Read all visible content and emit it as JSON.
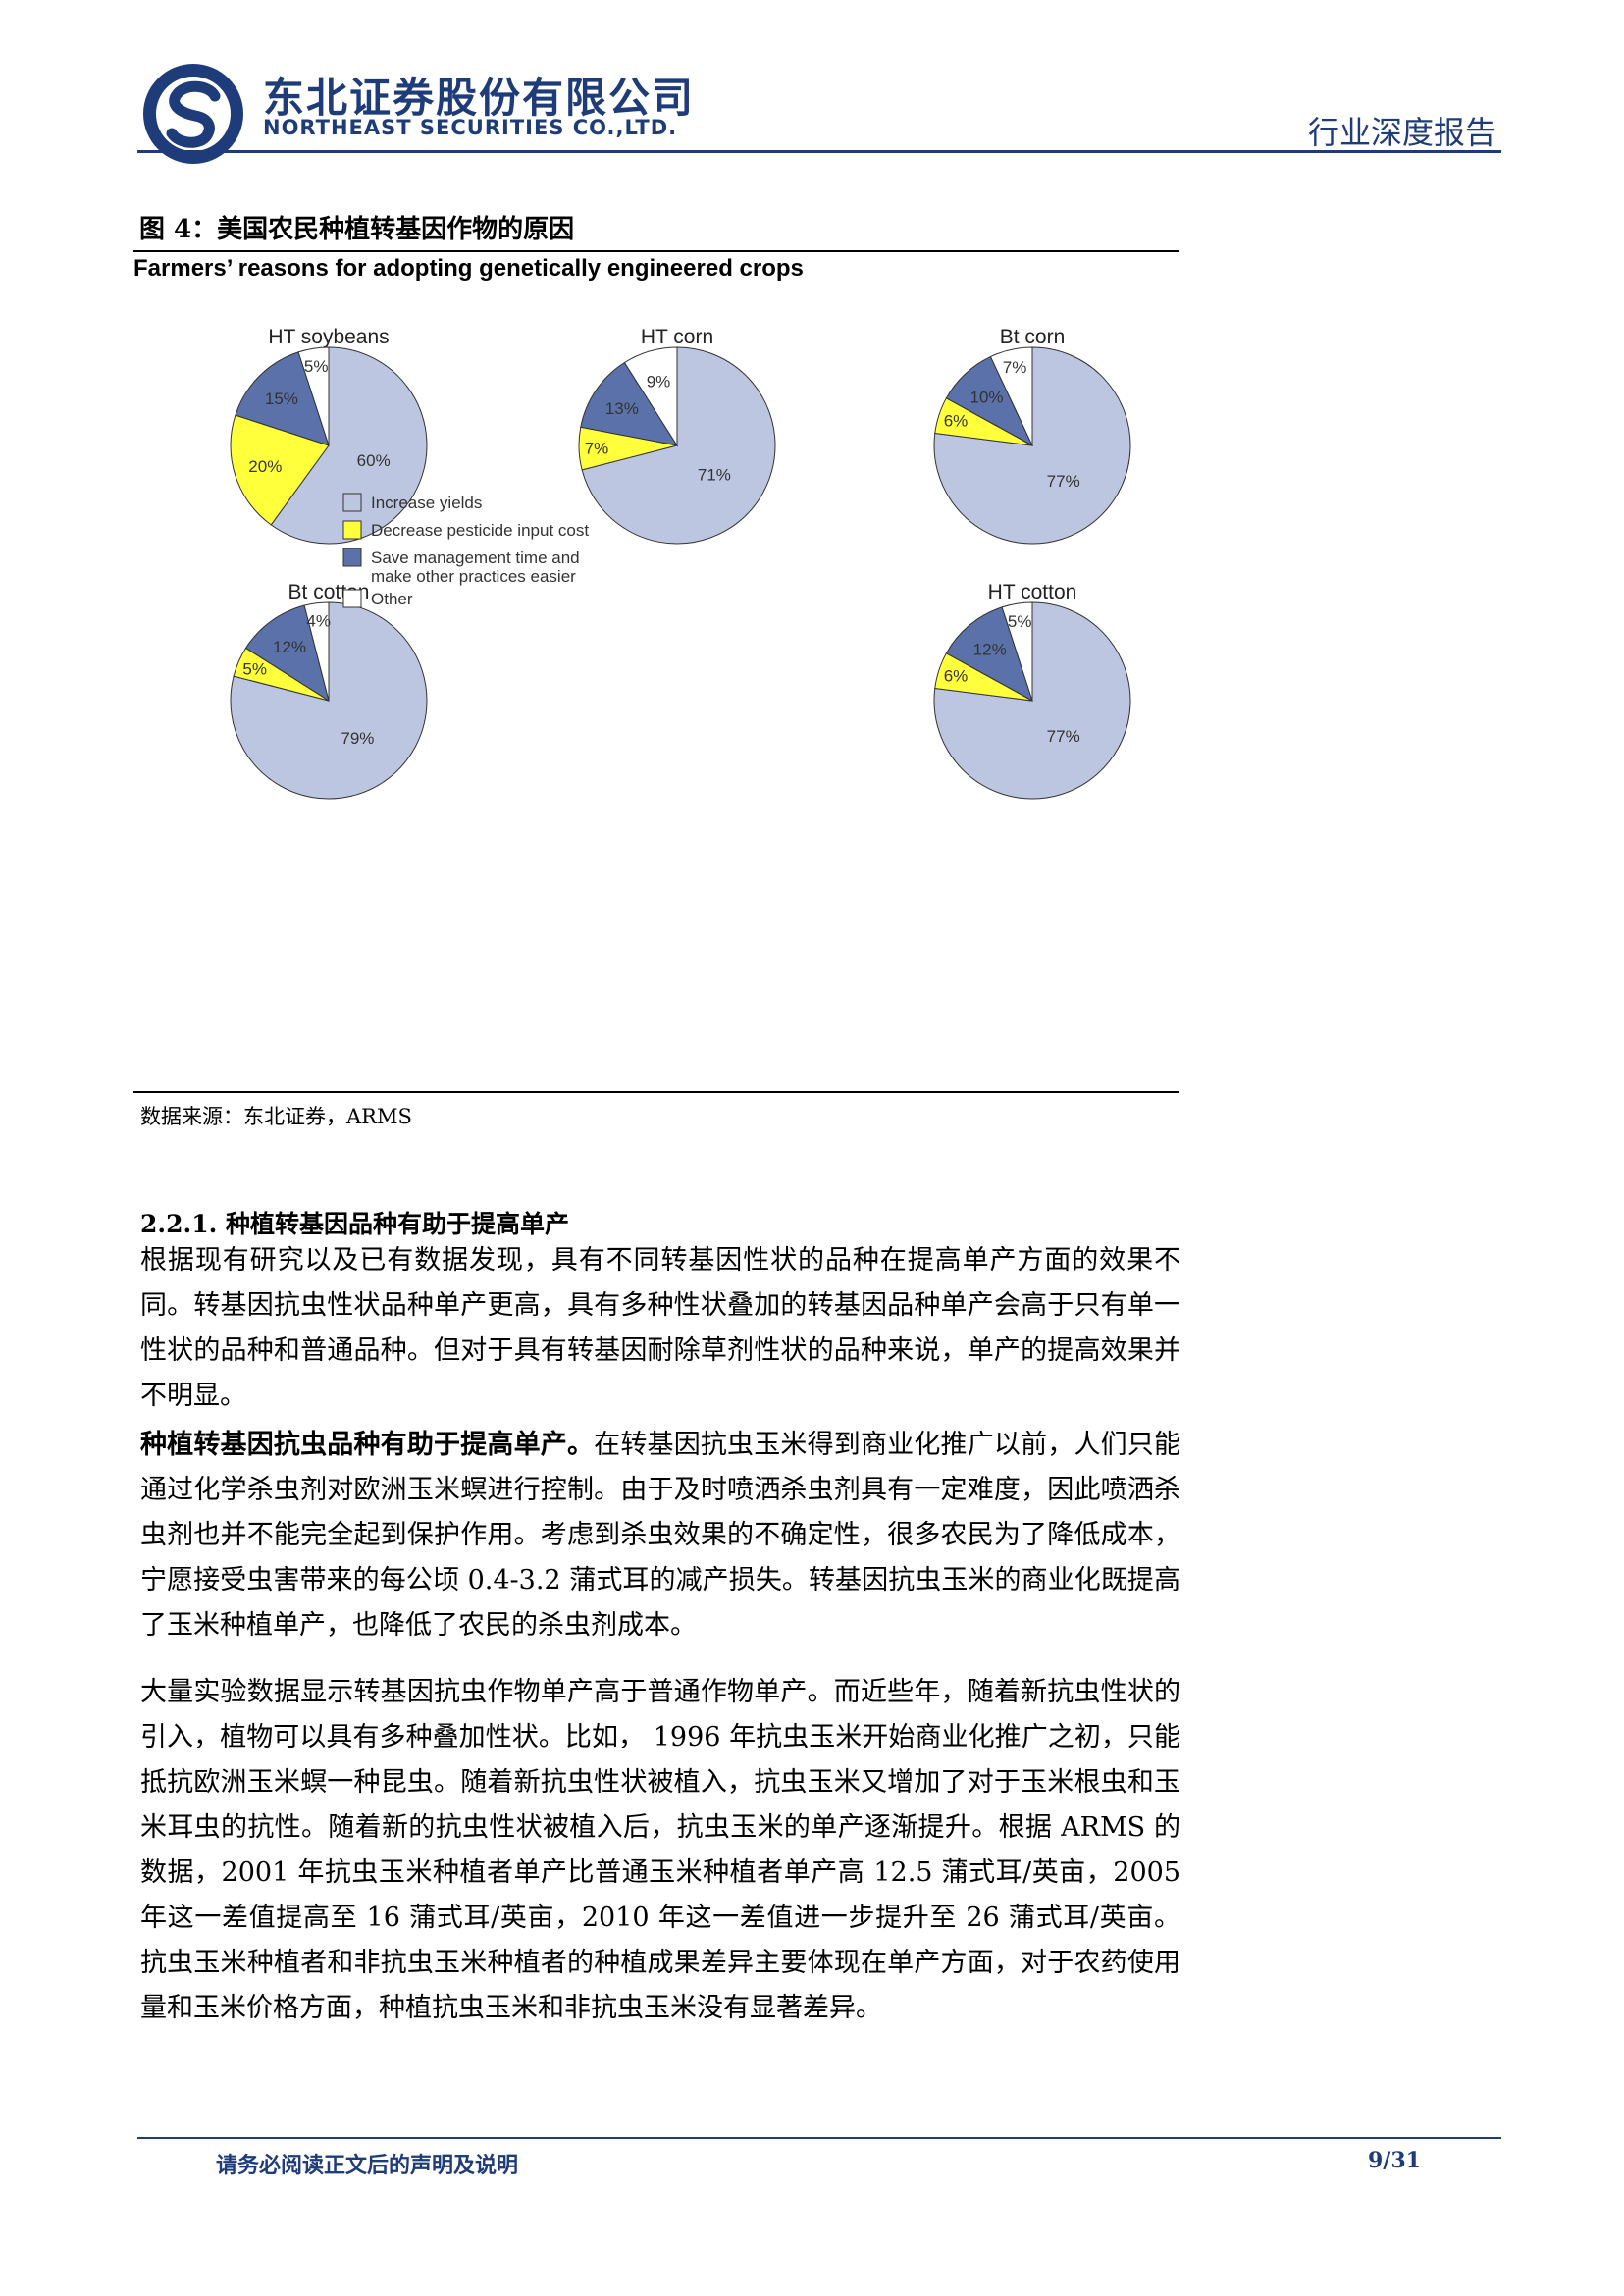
{
  "header": {
    "company_cn": "东北证券股份有限公司",
    "company_en": "NORTHEAST SECURITIES CO.,LTD.",
    "report_type": "行业深度报告"
  },
  "figure": {
    "caption": "图 4：美国农民种植转基因作物的原因",
    "source": "数据来源：东北证券，ARMS"
  },
  "colors": {
    "increase_yields": "#bcc6e0",
    "decrease_pesticide": "#ffff3b",
    "save_management": "#5a71a9",
    "other": "#ffffff",
    "brand": "#1f3c7a"
  },
  "chart_data": {
    "type": "pie",
    "title": "Farmers’ reasons for adopting genetically engineered crops",
    "legend": [
      "Increase yields",
      "Decrease pesticide input cost",
      "Save management time and make other practices easier",
      "Other"
    ],
    "legend_position": "center",
    "charts": [
      {
        "name": "HT soybeans",
        "values": [
          60,
          20,
          15,
          5
        ],
        "labels": [
          "60%",
          "20%",
          "15%",
          "5%"
        ]
      },
      {
        "name": "HT corn",
        "values": [
          71,
          7,
          13,
          9
        ],
        "labels": [
          "71%",
          "7%",
          "13%",
          "9%"
        ]
      },
      {
        "name": "Bt corn",
        "values": [
          77,
          6,
          10,
          7
        ],
        "labels": [
          "77%",
          "6%",
          "10%",
          "7%"
        ]
      },
      {
        "name": "Bt cotton",
        "values": [
          79,
          5,
          12,
          4
        ],
        "labels": [
          "79%",
          "5%",
          "12%",
          "4%"
        ]
      },
      {
        "name": "HT cotton",
        "values": [
          77,
          6,
          12,
          5
        ],
        "labels": [
          "77%",
          "6%",
          "12%",
          "5%"
        ]
      }
    ]
  },
  "section": {
    "heading": "2.2.1.   种植转基因品种有助于提高单产",
    "para1": "根据现有研究以及已有数据发现，具有不同转基因性状的品种在提高单产方面的效果不同。转基因抗虫性状品种单产更高，具有多种性状叠加的转基因品种单产会高于只有单一性状的品种和普通品种。但对于具有转基因耐除草剂性状的品种来说，单产的提高效果并不明显。",
    "para2_lead": "种植转基因抗虫品种有助于提高单产。",
    "para2": "在转基因抗虫玉米得到商业化推广以前，人们只能通过化学杀虫剂对欧洲玉米螟进行控制。由于及时喷洒杀虫剂具有一定难度，因此喷洒杀虫剂也并不能完全起到保护作用。考虑到杀虫效果的不确定性，很多农民为了降低成本，宁愿接受虫害带来的每公顷 0.4-3.2 蒲式耳的减产损失。转基因抗虫玉米的商业化既提高了玉米种植单产，也降低了农民的杀虫剂成本。",
    "para3": "大量实验数据显示转基因抗虫作物单产高于普通作物单产。而近些年，随着新抗虫性状的引入，植物可以具有多种叠加性状。比如， 1996 年抗虫玉米开始商业化推广之初，只能抵抗欧洲玉米螟一种昆虫。随着新抗虫性状被植入，抗虫玉米又增加了对于玉米根虫和玉米耳虫的抗性。随着新的抗虫性状被植入后，抗虫玉米的单产逐渐提升。根据 ARMS 的数据，2001 年抗虫玉米种植者单产比普通玉米种植者单产高 12.5 蒲式耳/英亩，2005 年这一差值提高至 16 蒲式耳/英亩，2010 年这一差值进一步提升至 26 蒲式耳/英亩。抗虫玉米种植者和非抗虫玉米种植者的种植成果差异主要体现在单产方面，对于农药使用量和玉米价格方面，种植抗虫玉米和非抗虫玉米没有显著差异。"
  },
  "footer": {
    "notice": "请务必阅读正文后的声明及说明",
    "page": "9/31"
  }
}
